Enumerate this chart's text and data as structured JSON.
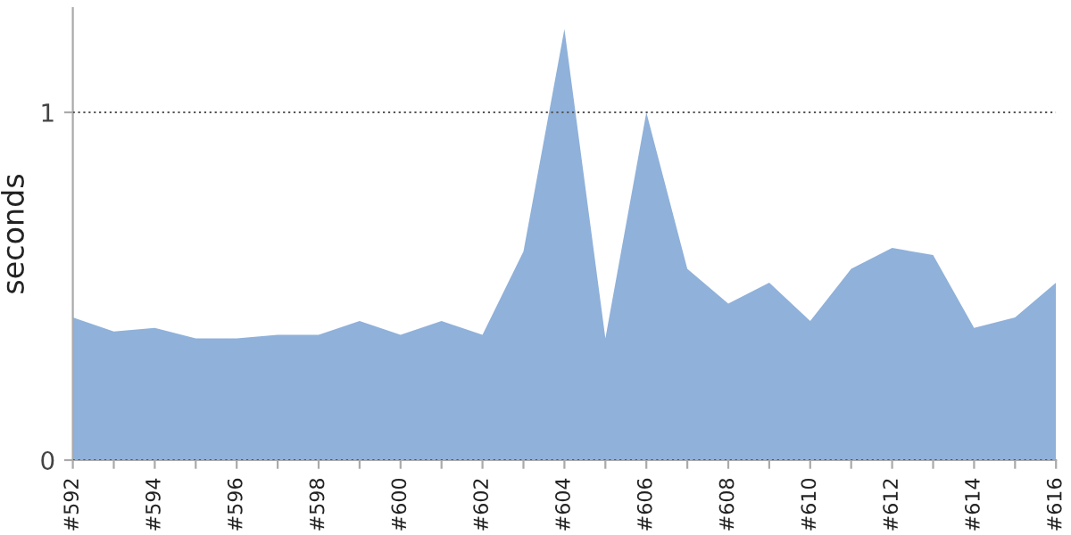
{
  "chart_data": {
    "type": "area",
    "ylabel": "seconds",
    "categories": [
      "#592",
      null,
      "#594",
      null,
      "#596",
      null,
      "#598",
      null,
      "#600",
      null,
      "#602",
      null,
      "#604",
      null,
      "#606",
      null,
      "#608",
      null,
      "#610",
      null,
      "#612",
      null,
      "#614",
      null,
      "#616"
    ],
    "series": [
      {
        "color": "#8fb1da",
        "values": [
          0.41,
          0.37,
          0.38,
          0.35,
          0.35,
          0.36,
          0.36,
          0.4,
          0.36,
          0.4,
          0.36,
          0.6,
          1.24,
          0.35,
          1.0,
          0.55,
          0.45,
          0.51,
          0.4,
          0.55,
          0.61,
          0.59,
          0.38,
          0.41,
          0.51
        ]
      }
    ],
    "ylim": [
      0,
      1.3
    ],
    "yticks": [
      0,
      1
    ],
    "grid": "y",
    "legend": false
  }
}
